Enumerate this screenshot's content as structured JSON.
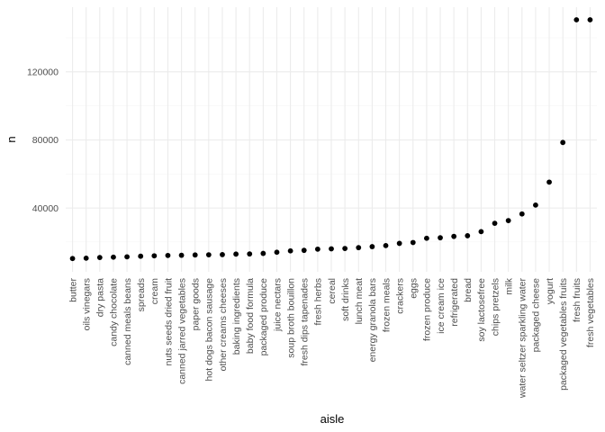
{
  "chart_data": {
    "type": "scatter",
    "xlabel": "aisle",
    "ylabel": "n",
    "x": [
      "butter",
      "oils vinegars",
      "dry pasta",
      "candy chocolate",
      "canned meals beans",
      "spreads",
      "cream",
      "nuts seeds dried fruit",
      "canned jarred vegetables",
      "paper goods",
      "hot dogs bacon sausage",
      "other creams cheeses",
      "baking ingredients",
      "baby food formula",
      "packaged produce",
      "juice nectars",
      "soup broth bouillon",
      "fresh dips tapenades",
      "fresh herbs",
      "cereal",
      "soft drinks",
      "lunch meat",
      "energy granola bars",
      "frozen meals",
      "crackers",
      "eggs",
      "frozen produce",
      "ice cream ice",
      "refrigerated",
      "bread",
      "soy lactosefree",
      "chips pretzels",
      "milk",
      "water seltzer sparkling water",
      "packaged cheese",
      "yogurt",
      "packaged vegetables fruits",
      "fresh fruits",
      "fresh vegetables"
    ],
    "values": [
      10300,
      10500,
      10900,
      11100,
      11300,
      11650,
      11900,
      12100,
      12200,
      12400,
      12500,
      12600,
      12900,
      13000,
      13300,
      14000,
      14800,
      15100,
      15800,
      16000,
      16200,
      16700,
      17300,
      17900,
      19200,
      19700,
      22200,
      22500,
      23300,
      23700,
      26100,
      31000,
      32600,
      36500,
      41700,
      55200,
      78500,
      150600,
      150600
    ],
    "yticks": [
      40000,
      80000,
      120000
    ],
    "ytick_labels": [
      "40000",
      "80000",
      "120000"
    ],
    "ylim": [
      2500,
      158000
    ],
    "grid": true,
    "color": "#000000"
  }
}
